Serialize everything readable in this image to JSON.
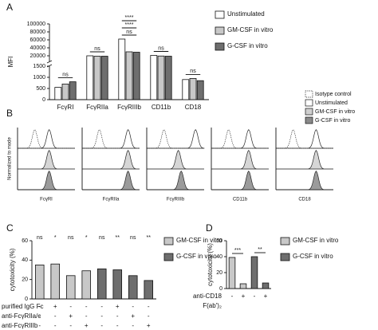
{
  "chart_data": [
    {
      "type": "bar",
      "panel": "A",
      "y_label": "MFI",
      "categories": [
        "FcγRI",
        "FcγRIIa",
        "FcγRIIIb",
        "CD11b",
        "CD18"
      ],
      "series": [
        {
          "name": "Unstimulated",
          "color": "#ffffff",
          "values": [
            550,
            20000,
            62000,
            21000,
            900
          ]
        },
        {
          "name": "GM-CSF in vitro",
          "color": "#c8c8c8",
          "values": [
            700,
            19000,
            30000,
            19500,
            950
          ]
        },
        {
          "name": "G-CSF in vitro",
          "color": "#6e6e6e",
          "values": [
            800,
            19000,
            29000,
            19000,
            850
          ]
        }
      ],
      "ylim": [
        0,
        100000
      ],
      "axis_break": [
        1500,
        6000
      ],
      "yticks": [
        0,
        500,
        1000,
        1500,
        20000,
        40000,
        60000,
        80000,
        100000
      ],
      "significance": [
        [
          "ns"
        ],
        [
          "ns"
        ],
        [
          "****",
          "****",
          "ns"
        ],
        [
          "ns"
        ],
        [
          "ns"
        ]
      ]
    },
    {
      "type": "histogram",
      "panel": "B",
      "y_label": "Normalized to mode",
      "categories": [
        "FcγRI",
        "FcγRIIa",
        "FcγRIIIb",
        "CD11b",
        "CD18"
      ],
      "series": [
        {
          "name": "Isotype control",
          "color": "#ffffff",
          "line": "dotted",
          "peaks": [
            0.3,
            0.3,
            0.3,
            0.3,
            0.3
          ]
        },
        {
          "name": "Unstimulated",
          "color": "#ffffff",
          "line": "solid",
          "peaks": [
            0.55,
            0.8,
            0.85,
            0.65,
            0.7
          ]
        },
        {
          "name": "GM-CSF in vitro",
          "color": "#cfcfcf",
          "line": "solid",
          "peaks": [
            0.55,
            0.8,
            0.55,
            0.65,
            0.7
          ]
        },
        {
          "name": "G-CSF in vitro",
          "color": "#8a8a8a",
          "line": "solid",
          "peaks": [
            0.55,
            0.8,
            0.6,
            0.65,
            0.7
          ]
        }
      ]
    },
    {
      "type": "bar",
      "panel": "C",
      "y_label": "cytotoxicity (%)",
      "series": [
        {
          "name": "GM-CSF in vitro",
          "color": "#c8c8c8",
          "values": [
            35,
            36,
            24,
            29
          ]
        },
        {
          "name": "G-CSF in vitro",
          "color": "#6e6e6e",
          "values": [
            31,
            30,
            24,
            19
          ]
        }
      ],
      "ylim": [
        0,
        60
      ],
      "yticks": [
        0,
        20,
        40,
        60
      ],
      "significance": [
        "ns",
        "*",
        "ns",
        "*",
        "ns",
        "**",
        "ns",
        "**"
      ],
      "rows": [
        {
          "label": "purified IgG Fc",
          "signs": [
            "-",
            "+",
            "-",
            "-",
            "-",
            "+",
            "-",
            "-"
          ]
        },
        {
          "label": "anti-FcγRIIa/c",
          "signs": [
            "-",
            "-",
            "+",
            "-",
            "-",
            "-",
            "+",
            "-"
          ]
        },
        {
          "label": "anti-FcγRIIIb",
          "signs": [
            "-",
            "-",
            "-",
            "+",
            "-",
            "-",
            "-",
            "+"
          ]
        }
      ]
    },
    {
      "type": "bar",
      "panel": "D",
      "y_label": "cytotoxicity (%)",
      "series": [
        {
          "name": "GM-CSF in vitro",
          "color": "#c8c8c8",
          "values": [
            39,
            6
          ]
        },
        {
          "name": "G-CSF in vitro",
          "color": "#6e6e6e",
          "values": [
            40,
            7
          ]
        }
      ],
      "ylim": [
        0,
        60
      ],
      "yticks": [
        0,
        20,
        40,
        60
      ],
      "significance": [
        "***",
        "**"
      ],
      "rows": [
        {
          "label": [
            "anti-CD18",
            "F(ab')₂"
          ],
          "signs": [
            "-",
            "+",
            "-",
            "+"
          ]
        }
      ]
    }
  ]
}
